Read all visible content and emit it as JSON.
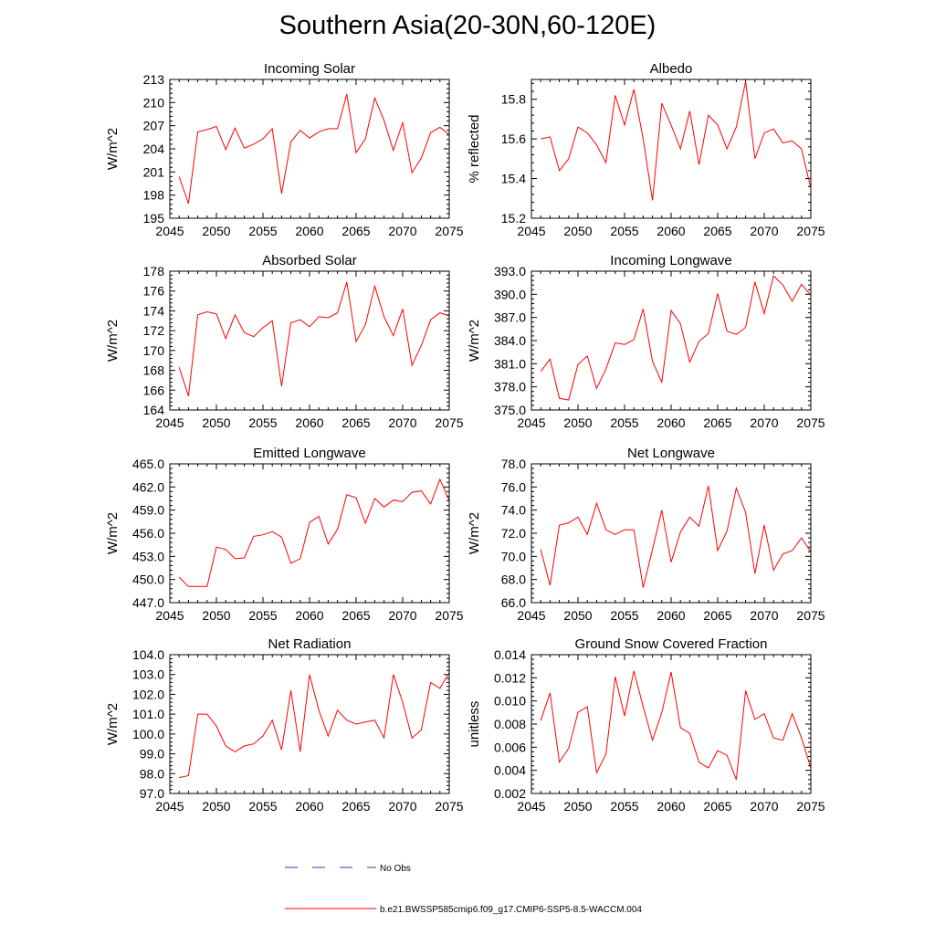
{
  "figure_title": "Southern Asia(20-30N,60-120E)",
  "legend": [
    {
      "label": "No Obs",
      "color": "#3a3aa6",
      "style": "dashed"
    },
    {
      "label": "b.e21.BWSSP585cmip6.f09_g17.CMIP6-SSP5-8.5-WACCM.004",
      "color": "#ff0000",
      "style": "solid"
    }
  ],
  "chart_data": [
    {
      "type": "line",
      "title": "Incoming Solar",
      "xlabel": "",
      "ylabel": "W/m^2",
      "xlim": [
        2045,
        2075
      ],
      "ylim": [
        195,
        213
      ],
      "xticks": [
        2045,
        2050,
        2055,
        2060,
        2065,
        2070,
        2075
      ],
      "yticks": [
        195,
        198,
        201,
        204,
        207,
        210,
        213
      ],
      "ydec": 0,
      "series": [
        {
          "name": "b.e21.BWSSP585cmip6.f09_g17.CMIP6-SSP5-8.5-WACCM.004",
          "color": "#ff0000",
          "x": [
            2046,
            2047,
            2048,
            2049,
            2050,
            2051,
            2052,
            2053,
            2054,
            2055,
            2056,
            2057,
            2058,
            2059,
            2060,
            2061,
            2062,
            2063,
            2064,
            2065,
            2066,
            2067,
            2068,
            2069,
            2070,
            2071,
            2072,
            2073,
            2074,
            2075
          ],
          "y": [
            200.4,
            196.9,
            206.2,
            206.5,
            206.9,
            203.9,
            206.7,
            204.1,
            204.6,
            205.3,
            206.6,
            198.2,
            204.9,
            206.4,
            205.4,
            206.2,
            206.6,
            206.6,
            211.1,
            203.5,
            205.3,
            210.6,
            207.7,
            203.8,
            207.4,
            200.9,
            202.8,
            206.1,
            206.8,
            205.8
          ]
        }
      ]
    },
    {
      "type": "line",
      "title": "Albedo",
      "xlabel": "",
      "ylabel": "% reflected",
      "xlim": [
        2045,
        2075
      ],
      "ylim": [
        15.2,
        15.9
      ],
      "xticks": [
        2045,
        2050,
        2055,
        2060,
        2065,
        2070,
        2075
      ],
      "yticks": [
        15.2,
        15.4,
        15.6,
        15.8
      ],
      "ydec": 1,
      "series": [
        {
          "name": "b.e21.BWSSP585cmip6.f09_g17.CMIP6-SSP5-8.5-WACCM.004",
          "color": "#ff0000",
          "x": [
            2046,
            2047,
            2048,
            2049,
            2050,
            2051,
            2052,
            2053,
            2054,
            2055,
            2056,
            2057,
            2058,
            2059,
            2060,
            2061,
            2062,
            2063,
            2064,
            2065,
            2066,
            2067,
            2068,
            2069,
            2070,
            2071,
            2072,
            2073,
            2074,
            2075
          ],
          "y": [
            15.6,
            15.61,
            15.44,
            15.5,
            15.66,
            15.63,
            15.57,
            15.48,
            15.82,
            15.67,
            15.85,
            15.6,
            15.29,
            15.78,
            15.67,
            15.55,
            15.74,
            15.47,
            15.72,
            15.67,
            15.55,
            15.66,
            15.89,
            15.5,
            15.63,
            15.65,
            15.58,
            15.59,
            15.55,
            15.35
          ]
        }
      ]
    },
    {
      "type": "line",
      "title": "Absorbed Solar",
      "xlabel": "",
      "ylabel": "W/m^2",
      "xlim": [
        2045,
        2075
      ],
      "ylim": [
        164,
        178
      ],
      "xticks": [
        2045,
        2050,
        2055,
        2060,
        2065,
        2070,
        2075
      ],
      "yticks": [
        164,
        166,
        168,
        170,
        172,
        174,
        176,
        178
      ],
      "ydec": 0,
      "series": [
        {
          "name": "b.e21.BWSSP585cmip6.f09_g17.CMIP6-SSP5-8.5-WACCM.004",
          "color": "#ff0000",
          "x": [
            2046,
            2047,
            2048,
            2049,
            2050,
            2051,
            2052,
            2053,
            2054,
            2055,
            2056,
            2057,
            2058,
            2059,
            2060,
            2061,
            2062,
            2063,
            2064,
            2065,
            2066,
            2067,
            2068,
            2069,
            2070,
            2071,
            2072,
            2073,
            2074,
            2075
          ],
          "y": [
            168.3,
            165.4,
            173.6,
            173.9,
            173.7,
            171.2,
            173.6,
            171.8,
            171.4,
            172.3,
            173.0,
            166.4,
            172.8,
            173.1,
            172.4,
            173.4,
            173.3,
            173.8,
            176.9,
            170.9,
            172.6,
            176.5,
            173.4,
            171.5,
            174.2,
            168.5,
            170.5,
            173.1,
            173.8,
            173.5
          ]
        }
      ]
    },
    {
      "type": "line",
      "title": "Incoming Longwave",
      "xlabel": "",
      "ylabel": "W/m^2",
      "xlim": [
        2045,
        2075
      ],
      "ylim": [
        375,
        393
      ],
      "xticks": [
        2045,
        2050,
        2055,
        2060,
        2065,
        2070,
        2075
      ],
      "yticks": [
        375,
        378,
        381,
        384,
        387,
        390,
        393
      ],
      "ydec": 1,
      "series": [
        {
          "name": "b.e21.BWSSP585cmip6.f09_g17.CMIP6-SSP5-8.5-WACCM.004",
          "color": "#ff0000",
          "x": [
            2046,
            2047,
            2048,
            2049,
            2050,
            2051,
            2052,
            2053,
            2054,
            2055,
            2056,
            2057,
            2058,
            2059,
            2060,
            2061,
            2062,
            2063,
            2064,
            2065,
            2066,
            2067,
            2068,
            2069,
            2070,
            2071,
            2072,
            2073,
            2074,
            2075
          ],
          "y": [
            380.0,
            381.6,
            376.5,
            376.3,
            380.9,
            382.0,
            377.8,
            380.3,
            383.7,
            383.5,
            384.1,
            388.1,
            381.3,
            378.6,
            387.9,
            386.2,
            381.2,
            383.9,
            384.9,
            390.1,
            385.2,
            384.8,
            385.7,
            391.6,
            387.5,
            392.4,
            391.2,
            389.1,
            391.3,
            389.9
          ]
        }
      ]
    },
    {
      "type": "line",
      "title": "Emitted Longwave",
      "xlabel": "",
      "ylabel": "W/m^2",
      "xlim": [
        2045,
        2075
      ],
      "ylim": [
        447,
        465
      ],
      "xticks": [
        2045,
        2050,
        2055,
        2060,
        2065,
        2070,
        2075
      ],
      "yticks": [
        447,
        450,
        453,
        456,
        459,
        462,
        465
      ],
      "ydec": 1,
      "series": [
        {
          "name": "b.e21.BWSSP585cmip6.f09_g17.CMIP6-SSP5-8.5-WACCM.004",
          "color": "#ff0000",
          "x": [
            2046,
            2047,
            2048,
            2049,
            2050,
            2051,
            2052,
            2053,
            2054,
            2055,
            2056,
            2057,
            2058,
            2059,
            2060,
            2061,
            2062,
            2063,
            2064,
            2065,
            2066,
            2067,
            2068,
            2069,
            2070,
            2071,
            2072,
            2073,
            2074,
            2075
          ],
          "y": [
            450.3,
            449.1,
            449.1,
            449.1,
            454.2,
            453.9,
            452.7,
            452.8,
            455.6,
            455.8,
            456.2,
            455.5,
            452.1,
            452.7,
            457.4,
            458.2,
            454.6,
            456.5,
            461.0,
            460.6,
            457.3,
            460.5,
            459.4,
            460.3,
            460.1,
            461.3,
            461.5,
            459.8,
            463.0,
            460.2
          ]
        }
      ]
    },
    {
      "type": "line",
      "title": "Net Longwave",
      "xlabel": "",
      "ylabel": "W/m^2",
      "xlim": [
        2045,
        2075
      ],
      "ylim": [
        66,
        78
      ],
      "xticks": [
        2045,
        2050,
        2055,
        2060,
        2065,
        2070,
        2075
      ],
      "yticks": [
        66,
        68,
        70,
        72,
        74,
        76,
        78
      ],
      "ydec": 1,
      "series": [
        {
          "name": "b.e21.BWSSP585cmip6.f09_g17.CMIP6-SSP5-8.5-WACCM.004",
          "color": "#ff0000",
          "x": [
            2046,
            2047,
            2048,
            2049,
            2050,
            2051,
            2052,
            2053,
            2054,
            2055,
            2056,
            2057,
            2058,
            2059,
            2060,
            2061,
            2062,
            2063,
            2064,
            2065,
            2066,
            2067,
            2068,
            2069,
            2070,
            2071,
            2072,
            2073,
            2074,
            2075
          ],
          "y": [
            70.6,
            67.5,
            72.7,
            72.9,
            73.4,
            71.9,
            74.6,
            72.3,
            71.9,
            72.3,
            72.3,
            67.3,
            70.6,
            74.0,
            69.5,
            72.1,
            73.4,
            72.6,
            76.1,
            70.5,
            72.2,
            75.9,
            73.8,
            68.5,
            72.7,
            68.8,
            70.2,
            70.5,
            71.6,
            70.4
          ]
        }
      ]
    },
    {
      "type": "line",
      "title": "Net Radiation",
      "xlabel": "",
      "ylabel": "W/m^2",
      "xlim": [
        2045,
        2075
      ],
      "ylim": [
        97,
        104
      ],
      "xticks": [
        2045,
        2050,
        2055,
        2060,
        2065,
        2070,
        2075
      ],
      "yticks": [
        97,
        98,
        99,
        100,
        101,
        102,
        103,
        104
      ],
      "ydec": 1,
      "series": [
        {
          "name": "b.e21.BWSSP585cmip6.f09_g17.CMIP6-SSP5-8.5-WACCM.004",
          "color": "#ff0000",
          "x": [
            2046,
            2047,
            2048,
            2049,
            2050,
            2051,
            2052,
            2053,
            2054,
            2055,
            2056,
            2057,
            2058,
            2059,
            2060,
            2061,
            2062,
            2063,
            2064,
            2065,
            2066,
            2067,
            2068,
            2069,
            2070,
            2071,
            2072,
            2073,
            2074,
            2075
          ],
          "y": [
            97.8,
            97.9,
            101.0,
            101.0,
            100.4,
            99.4,
            99.1,
            99.4,
            99.5,
            99.9,
            100.7,
            99.2,
            102.2,
            99.1,
            103.0,
            101.2,
            99.9,
            101.2,
            100.7,
            100.5,
            100.6,
            100.7,
            99.8,
            103.0,
            101.6,
            99.8,
            100.2,
            102.6,
            102.3,
            103.1
          ]
        }
      ]
    },
    {
      "type": "line",
      "title": "Ground Snow Covered Fraction",
      "xlabel": "",
      "ylabel": "unitless",
      "xlim": [
        2045,
        2075
      ],
      "ylim": [
        0.002,
        0.014
      ],
      "xticks": [
        2045,
        2050,
        2055,
        2060,
        2065,
        2070,
        2075
      ],
      "yticks": [
        0.002,
        0.004,
        0.006,
        0.008,
        0.01,
        0.012,
        0.014
      ],
      "ydec": 3,
      "series": [
        {
          "name": "b.e21.BWSSP585cmip6.f09_g17.CMIP6-SSP5-8.5-WACCM.004",
          "color": "#ff0000",
          "x": [
            2046,
            2047,
            2048,
            2049,
            2050,
            2051,
            2052,
            2053,
            2054,
            2055,
            2056,
            2057,
            2058,
            2059,
            2060,
            2061,
            2062,
            2063,
            2064,
            2065,
            2066,
            2067,
            2068,
            2069,
            2070,
            2071,
            2072,
            2073,
            2074,
            2075
          ],
          "y": [
            0.0083,
            0.0107,
            0.0047,
            0.0059,
            0.009,
            0.0095,
            0.0038,
            0.0054,
            0.0121,
            0.0087,
            0.0126,
            0.0095,
            0.0066,
            0.009,
            0.0125,
            0.0077,
            0.0072,
            0.0047,
            0.0042,
            0.0057,
            0.0053,
            0.0032,
            0.0109,
            0.0084,
            0.0089,
            0.0068,
            0.0066,
            0.0089,
            0.0068,
            0.0042
          ]
        }
      ]
    }
  ]
}
